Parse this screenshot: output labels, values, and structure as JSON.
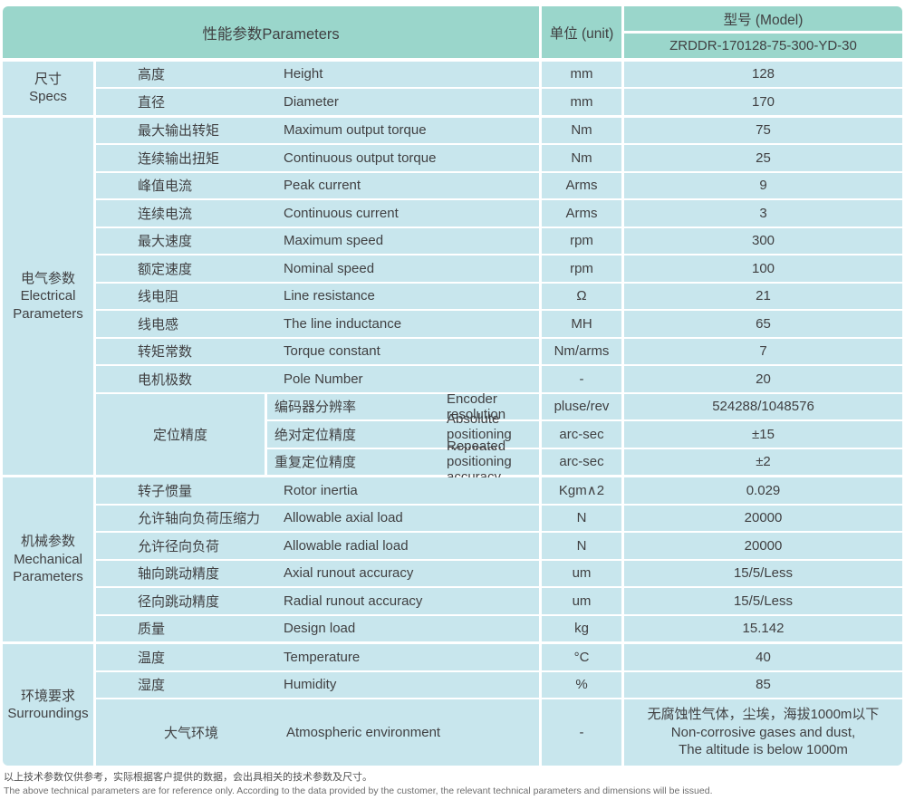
{
  "colors": {
    "header_bg": "#9ad6cb",
    "row_bg": "#c8e6ed",
    "gap": "#ffffff",
    "text": "#404042",
    "footnote_zh": "#4f4f4f",
    "footnote_en": "#6e6e6e"
  },
  "header": {
    "parameters": "性能参数Parameters",
    "unit": "单位 (unit)",
    "model_label": "型号 (Model)",
    "model_value": "ZRDDR-170128-75-300-YD-30"
  },
  "sections": [
    {
      "group_zh": "尺寸",
      "group_en": "Specs",
      "rows": [
        {
          "zh": "高度",
          "en": "Height",
          "unit": "mm",
          "value": "128"
        },
        {
          "zh": "直径",
          "en": "Diameter",
          "unit": "mm",
          "value": "170"
        }
      ]
    },
    {
      "group_zh": "电气参数",
      "group_en": "Electrical Parameters",
      "rows": [
        {
          "zh": "最大输出转矩",
          "en": "Maximum output torque",
          "unit": "Nm",
          "value": "75"
        },
        {
          "zh": "连续输出扭矩",
          "en": "Continuous output torque",
          "unit": "Nm",
          "value": "25"
        },
        {
          "zh": "峰值电流",
          "en": "Peak current",
          "unit": "Arms",
          "value": "9"
        },
        {
          "zh": "连续电流",
          "en": "Continuous current",
          "unit": "Arms",
          "value": "3"
        },
        {
          "zh": "最大速度",
          "en": "Maximum speed",
          "unit": "rpm",
          "value": "300"
        },
        {
          "zh": "额定速度",
          "en": "Nominal speed",
          "unit": "rpm",
          "value": "100"
        },
        {
          "zh": "线电阻",
          "en": "Line resistance",
          "unit": "Ω",
          "value": "21"
        },
        {
          "zh": "线电感",
          "en": "The line inductance",
          "unit": "MH",
          "value": "65"
        },
        {
          "zh": "转矩常数",
          "en": "Torque constant",
          "unit": "Nm/arms",
          "value": "7"
        },
        {
          "zh": "电机极数",
          "en": "Pole Number",
          "unit": "-",
          "value": "20"
        }
      ],
      "subgroup": {
        "label": "定位精度",
        "rows": [
          {
            "zh": "编码器分辨率",
            "en": "Encoder resolution",
            "unit": "pluse/rev",
            "value": "524288/1048576"
          },
          {
            "zh": "绝对定位精度",
            "en": "Absolute positioning accuracy",
            "unit": "arc-sec",
            "value": "±15"
          },
          {
            "zh": "重复定位精度",
            "en": "Repeated positioning accuracy",
            "unit": "arc-sec",
            "value": "±2"
          }
        ]
      }
    },
    {
      "group_zh": "机械参数",
      "group_en": "Mechanical Parameters",
      "rows": [
        {
          "zh": "转子惯量",
          "en": "Rotor inertia",
          "unit": "Kgm∧2",
          "value": "0.029"
        },
        {
          "zh": "允许轴向负荷压缩力",
          "en": "Allowable axial load",
          "unit": "N",
          "value": "20000"
        },
        {
          "zh": "允许径向负荷",
          "en": "Allowable radial load",
          "unit": "N",
          "value": "20000"
        },
        {
          "zh": "轴向跳动精度",
          "en": "Axial runout accuracy",
          "unit": "um",
          "value": "15/5/Less"
        },
        {
          "zh": "径向跳动精度",
          "en": "Radial runout accuracy",
          "unit": "um",
          "value": "15/5/Less"
        },
        {
          "zh": "质量",
          "en": "Design load",
          "unit": "kg",
          "value": "15.142"
        }
      ]
    },
    {
      "group_zh": "环境要求",
      "group_en": "Surroundings",
      "rows": [
        {
          "zh": "温度",
          "en": "Temperature",
          "unit": "°C",
          "value": "40"
        },
        {
          "zh": "湿度",
          "en": "Humidity",
          "unit": "%",
          "value": "85"
        },
        {
          "zh": "大气环境",
          "en": "Atmospheric environment",
          "unit": "-",
          "tall": true,
          "value_lines": [
            "无腐蚀性气体，尘埃，海拔1000m以下",
            "Non-corrosive gases and dust,",
            "The altitude is below 1000m"
          ]
        }
      ]
    }
  ],
  "footnotes": {
    "zh": "以上技术参数仅供参考，实际根据客户提供的数据，会出具相关的技术参数及尺寸。",
    "en": "The above technical parameters are for reference only. According to the data provided by the customer, the relevant technical parameters and dimensions will be issued."
  }
}
